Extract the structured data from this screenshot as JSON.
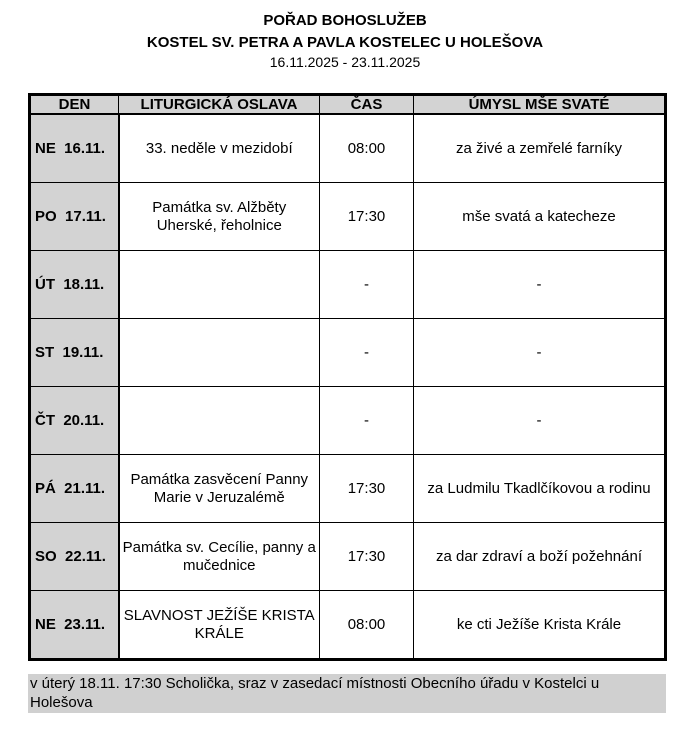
{
  "header": {
    "title": "POŘAD BOHOSLUŽEB",
    "church": "KOSTEL SV. PETRA A PAVLA KOSTELEC U HOLEŠOVA",
    "dates": "16.11.2025 - 23.11.2025"
  },
  "table": {
    "columns": [
      "DEN",
      "LITURGICKÁ OSLAVA",
      "ČAS",
      "ÚMYSL MŠE SVATÉ"
    ],
    "rows": [
      {
        "day": "NE  16.11.",
        "celebration": "33. neděle v mezidobí",
        "time": "08:00",
        "intention": "za živé a zemřelé farníky"
      },
      {
        "day": "PO  17.11.",
        "celebration": "Památka sv. Alžběty Uherské, řeholnice",
        "time": "17:30",
        "intention": "mše svatá a katecheze"
      },
      {
        "day": "ÚT  18.11.",
        "celebration": "",
        "time": "-",
        "intention": "-"
      },
      {
        "day": "ST  19.11.",
        "celebration": "",
        "time": "-",
        "intention": "-"
      },
      {
        "day": "ČT  20.11.",
        "celebration": "",
        "time": "-",
        "intention": "-"
      },
      {
        "day": "PÁ  21.11.",
        "celebration": "Památka zasvěcení Panny Marie v Jeruzalémě",
        "time": "17:30",
        "intention": "za Ludmilu Tkadlčíkovou a rodinu"
      },
      {
        "day": "SO  22.11.",
        "celebration": "Památka sv. Cecílie, panny a mučednice",
        "time": "17:30",
        "intention": "za dar zdraví a boží požehnání"
      },
      {
        "day": "NE  23.11.",
        "celebration": "SLAVNOST JEŽÍŠE KRISTA KRÁLE",
        "time": "08:00",
        "intention": "ke cti Ježíše Krista Krále"
      }
    ]
  },
  "note": "v úterý 18.11. 17:30 Scholička, sraz v zasedací místnosti Obecního úřadu v Kostelci u Holešova"
}
